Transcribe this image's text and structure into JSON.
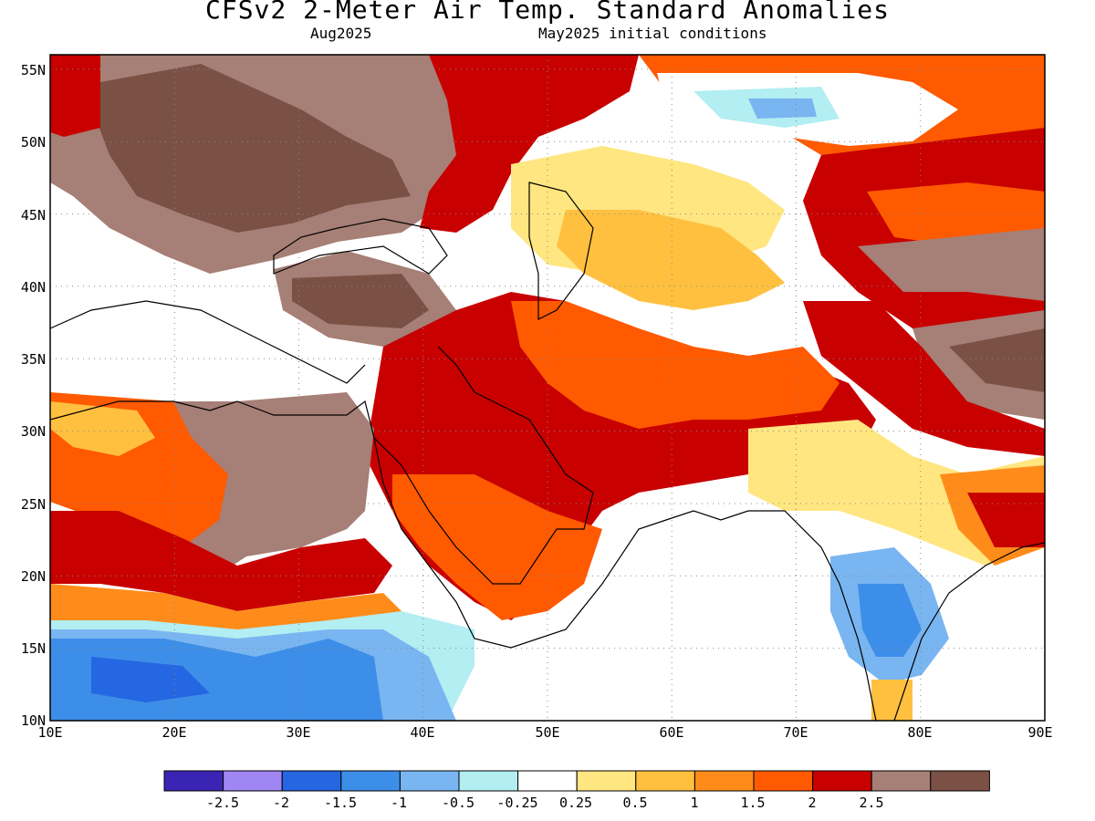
{
  "title": "CFSv2 2-Meter Air Temp. Standard Anomalies",
  "subtitle_left": "Aug2025",
  "subtitle_right": "May2025 initial conditions",
  "colors": {
    "n2_5": "#3a24b4",
    "n2": "#9f86f2",
    "n1_5": "#2566e2",
    "n1": "#3d8ee8",
    "n0_5": "#79b5f0",
    "n0_25": "#b2eef2",
    "zero": "#ffffff",
    "p0_25": "#ffe680",
    "p0_5": "#ffc040",
    "p1": "#ff8c1a",
    "p1_5": "#ff5a00",
    "p2": "#c80000",
    "p2_5": "#a67f76",
    "p3": "#7a5144"
  },
  "colorbar": {
    "swatches": [
      "#3a24b4",
      "#9f86f2",
      "#2566e2",
      "#3d8ee8",
      "#79b5f0",
      "#b2eef2",
      "#ffffff",
      "#ffe680",
      "#ffc040",
      "#ff8c1a",
      "#ff5a00",
      "#c80000",
      "#a67f76",
      "#7a5144"
    ],
    "labels": [
      "-2.5",
      "-2",
      "-1.5",
      "-1",
      "-0.5",
      "-0.25",
      "0.25",
      "0.5",
      "1",
      "1.5",
      "2",
      "2.5"
    ]
  },
  "axes": {
    "lon_ticks": [
      "10E",
      "20E",
      "30E",
      "40E",
      "50E",
      "60E",
      "70E",
      "80E",
      "90E"
    ],
    "lat_ticks": [
      "10N",
      "15N",
      "20N",
      "25N",
      "30N",
      "35N",
      "40N",
      "45N",
      "50N",
      "55N"
    ],
    "lon_range": [
      10,
      90
    ],
    "lat_range": [
      10,
      56
    ]
  },
  "chart_data": {
    "type": "heatmap",
    "title": "CFSv2 2-Meter Air Temp. Standard Anomalies",
    "xlabel": "",
    "ylabel": "",
    "x_ticks": [
      "10E",
      "20E",
      "30E",
      "40E",
      "50E",
      "60E",
      "70E",
      "80E",
      "90E"
    ],
    "y_ticks": [
      "10N",
      "15N",
      "20N",
      "25N",
      "30N",
      "35N",
      "40N",
      "45N",
      "50N",
      "55N"
    ],
    "legend_bins": [
      "-2.5",
      "-2",
      "-1.5",
      "-1",
      "-0.5",
      "-0.25",
      "0.25",
      "0.5",
      "1",
      "1.5",
      "2",
      "2.5"
    ],
    "grid": true
  }
}
